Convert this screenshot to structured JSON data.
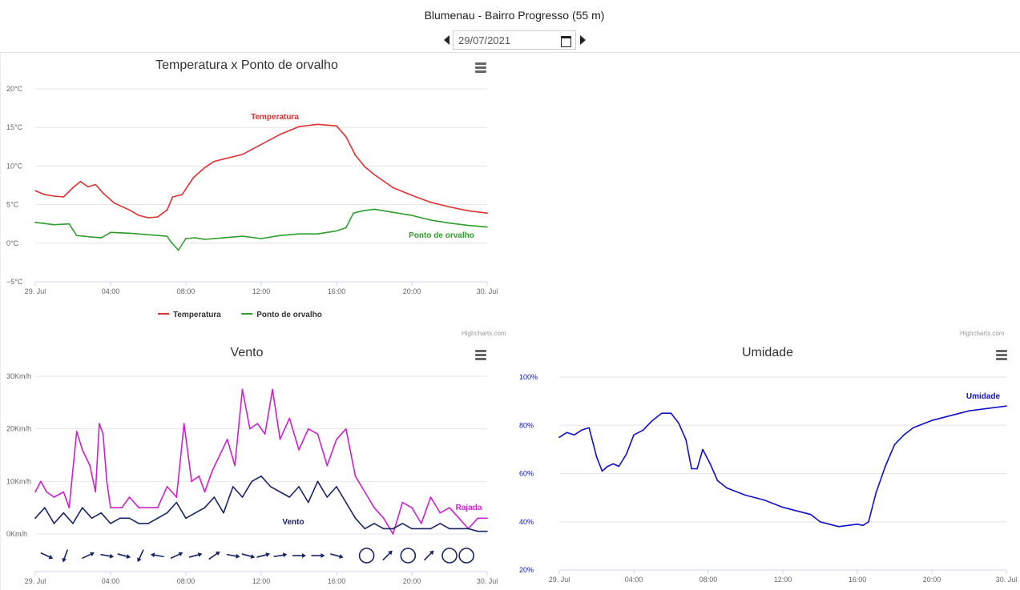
{
  "page": {
    "title": "Blumenau - Bairro Progresso (55 m)",
    "date_value": "29/07/2021"
  },
  "icons": {
    "prev": "caret-left-icon",
    "next": "caret-right-icon",
    "calendar": "calendar-icon",
    "menu": "hamburger-menu-icon"
  },
  "credits": {
    "temperature": "Highcharts.com",
    "middle": "Highcharts.com"
  },
  "chart_data": [
    {
      "id": "temperature",
      "type": "line",
      "title": "Temperatura x Ponto de orvalho",
      "ylim": [
        -5,
        20
      ],
      "yticks": [
        -5,
        0,
        5,
        10,
        15,
        20
      ],
      "ytick_labels": [
        "−5°C",
        "0°C",
        "5°C",
        "10°C",
        "15°C",
        "20°C"
      ],
      "xlim": [
        0,
        24
      ],
      "xticks": [
        0,
        4,
        8,
        12,
        16,
        20,
        24
      ],
      "xtick_labels": [
        "29. Jul",
        "04:00",
        "08:00",
        "12:00",
        "16:00",
        "20:00",
        "30. Jul"
      ],
      "grid": true,
      "legend": "bottom-center",
      "series": [
        {
          "name": "Temperatura",
          "color": "#e03131",
          "label": "Temperatura",
          "x": [
            0,
            0.5,
            1,
            1.5,
            2,
            2.4,
            2.8,
            3.2,
            3.6,
            4.2,
            5,
            5.5,
            6,
            6.5,
            7,
            7.3,
            7.8,
            8.4,
            9,
            9.5,
            10,
            11,
            12,
            13,
            14,
            15,
            16,
            16.5,
            17,
            17.5,
            18,
            19,
            20,
            21,
            22,
            23,
            24
          ],
          "y": [
            6.8,
            6.3,
            6.1,
            6.0,
            7.2,
            8.0,
            7.3,
            7.6,
            6.5,
            5.2,
            4.3,
            3.6,
            3.3,
            3.4,
            4.3,
            6.0,
            6.3,
            8.5,
            9.8,
            10.6,
            10.9,
            11.5,
            12.8,
            14.1,
            15.1,
            15.4,
            15.2,
            13.8,
            11.4,
            9.9,
            8.9,
            7.2,
            6.2,
            5.3,
            4.7,
            4.2,
            3.9
          ]
        },
        {
          "name": "Ponto de orvalho",
          "color": "#2e9e2e",
          "label": "Ponto de orvalho",
          "x": [
            0,
            1,
            1.8,
            2.2,
            3,
            3.5,
            4,
            5,
            6,
            7,
            7.2,
            7.6,
            8,
            8.5,
            9,
            10,
            11,
            12,
            13,
            14,
            15,
            16,
            16.5,
            16.9,
            17.4,
            18,
            19,
            20,
            21,
            22,
            23,
            24
          ],
          "y": [
            2.7,
            2.4,
            2.5,
            1.0,
            0.8,
            0.7,
            1.4,
            1.3,
            1.1,
            0.9,
            0.2,
            -0.9,
            0.6,
            0.7,
            0.5,
            0.7,
            0.9,
            0.6,
            1.0,
            1.2,
            1.2,
            1.6,
            2.0,
            3.9,
            4.2,
            4.4,
            4.0,
            3.6,
            3.0,
            2.6,
            2.3,
            2.1
          ]
        }
      ]
    },
    {
      "id": "wind",
      "type": "line",
      "title": "Vento",
      "ylim": [
        0,
        30
      ],
      "yticks": [
        0,
        10,
        20,
        30
      ],
      "ytick_labels": [
        "0Km/h",
        "10Km/h",
        "20Km/h",
        "30Km/h"
      ],
      "xlim": [
        0,
        24
      ],
      "xticks": [
        0,
        4,
        8,
        12,
        16,
        20,
        24
      ],
      "xtick_labels": [
        "29. Jul",
        "04:00",
        "08:00",
        "12:00",
        "16:00",
        "20:00",
        "30. Jul"
      ],
      "grid": true,
      "legend": "none",
      "series": [
        {
          "name": "Rajada",
          "color": "#cc22cc",
          "label": "Rajada",
          "x": [
            0,
            0.3,
            0.6,
            1,
            1.5,
            1.8,
            2.2,
            2.5,
            2.9,
            3.2,
            3.4,
            3.6,
            3.8,
            4,
            4.6,
            5,
            5.5,
            6,
            6.5,
            7,
            7.5,
            7.9,
            8.3,
            8.7,
            9,
            9.4,
            9.8,
            10.2,
            10.6,
            11,
            11.4,
            11.8,
            12.2,
            12.6,
            13,
            13.5,
            14,
            14.5,
            15,
            15.5,
            16,
            16.5,
            17,
            17.5,
            18,
            18.5,
            19,
            19.5,
            20,
            20.5,
            21,
            21.5,
            22,
            22.5,
            23,
            23.5,
            24
          ],
          "y": [
            8,
            10,
            8,
            7,
            8,
            5,
            19.5,
            16,
            13,
            8,
            21,
            19,
            10,
            5,
            5,
            7,
            5,
            5,
            5,
            9,
            7,
            21,
            10,
            11,
            8,
            12,
            15,
            18,
            13,
            27.5,
            20,
            21,
            19,
            27.5,
            18,
            22,
            16,
            20,
            19,
            13,
            18,
            20,
            11,
            8,
            5,
            3,
            0,
            6,
            5,
            2,
            7,
            4,
            5,
            3,
            1,
            3,
            3
          ]
        },
        {
          "name": "Vento",
          "color": "#1a2366",
          "label": "Vento",
          "x": [
            0,
            0.5,
            1,
            1.5,
            2,
            2.5,
            3,
            3.5,
            4,
            4.5,
            5,
            5.5,
            6,
            6.5,
            7,
            7.5,
            8,
            8.5,
            9,
            9.5,
            10,
            10.5,
            11,
            11.5,
            12,
            12.5,
            13,
            13.5,
            14,
            14.5,
            15,
            15.5,
            16,
            16.5,
            17,
            17.5,
            18,
            18.5,
            19,
            19.5,
            20,
            20.5,
            21,
            21.5,
            22,
            22.5,
            23,
            23.5,
            24
          ],
          "y": [
            3,
            5,
            2,
            4,
            2,
            5,
            3,
            4,
            2,
            3,
            3,
            2,
            2,
            3,
            4,
            6,
            3,
            4,
            5,
            7,
            4,
            9,
            7,
            10,
            11,
            9,
            8,
            7,
            9,
            6,
            10,
            7,
            9,
            6,
            3,
            1,
            2,
            1,
            1,
            2,
            1,
            1,
            1,
            2,
            1,
            1,
            1,
            0.5,
            0.5
          ]
        }
      ],
      "direction_arrows": [
        {
          "x": 0.6,
          "angle": 25
        },
        {
          "x": 1.6,
          "angle": 110
        },
        {
          "x": 2.8,
          "angle": -25
        },
        {
          "x": 3.8,
          "angle": 10
        },
        {
          "x": 4.7,
          "angle": 15
        },
        {
          "x": 5.6,
          "angle": 115
        },
        {
          "x": 6.5,
          "angle": -170
        },
        {
          "x": 7.5,
          "angle": -25
        },
        {
          "x": 8.5,
          "angle": -15
        },
        {
          "x": 9.5,
          "angle": -35
        },
        {
          "x": 10.5,
          "angle": 10
        },
        {
          "x": 11.3,
          "angle": 15
        },
        {
          "x": 12.1,
          "angle": -15
        },
        {
          "x": 13,
          "angle": -10
        },
        {
          "x": 14,
          "angle": 0
        },
        {
          "x": 15,
          "angle": 0
        },
        {
          "x": 16,
          "angle": 15
        },
        {
          "x": 17.6,
          "calm": true
        },
        {
          "x": 18.7,
          "angle": -45
        },
        {
          "x": 19.8,
          "calm": true
        },
        {
          "x": 20.9,
          "angle": -45
        },
        {
          "x": 22,
          "calm": true
        },
        {
          "x": 22.9,
          "calm": true
        }
      ]
    },
    {
      "id": "humidity",
      "type": "line",
      "title": "Umidade",
      "ylim": [
        20,
        100
      ],
      "yticks": [
        20,
        40,
        60,
        80,
        100
      ],
      "ytick_labels": [
        "20%",
        "40%",
        "60%",
        "80%",
        "100%"
      ],
      "xlim": [
        0,
        24
      ],
      "xticks": [
        0,
        4,
        8,
        12,
        16,
        20,
        24
      ],
      "xtick_labels": [
        "29. Jul",
        "04:00",
        "08:00",
        "12:00",
        "16:00",
        "20:00",
        "30. Jul"
      ],
      "grid": true,
      "legend": "none",
      "series": [
        {
          "name": "Umidade",
          "color": "#1010cc",
          "label": "Umidade",
          "x": [
            0,
            0.4,
            0.8,
            1.2,
            1.6,
            2,
            2.3,
            2.6,
            2.9,
            3.2,
            3.6,
            4,
            4.5,
            5,
            5.5,
            6,
            6.4,
            6.8,
            7.1,
            7.4,
            7.7,
            8.1,
            8.5,
            9,
            10,
            11,
            12,
            12.5,
            13,
            13.5,
            14,
            14.5,
            15,
            15.5,
            16,
            16.3,
            16.6,
            17,
            17.5,
            18,
            18.5,
            19,
            20,
            21,
            22,
            23,
            24
          ],
          "y": [
            75,
            77,
            76,
            78,
            79,
            67,
            61,
            63,
            64,
            63,
            68,
            76,
            78,
            82,
            85,
            85,
            81,
            74,
            62,
            62,
            70,
            64,
            57,
            54,
            51,
            49,
            46,
            45,
            44,
            43,
            40,
            39,
            38,
            38.5,
            39,
            38.5,
            40,
            52,
            63,
            72,
            76,
            79,
            82,
            84,
            86,
            87,
            88
          ]
        }
      ]
    }
  ]
}
